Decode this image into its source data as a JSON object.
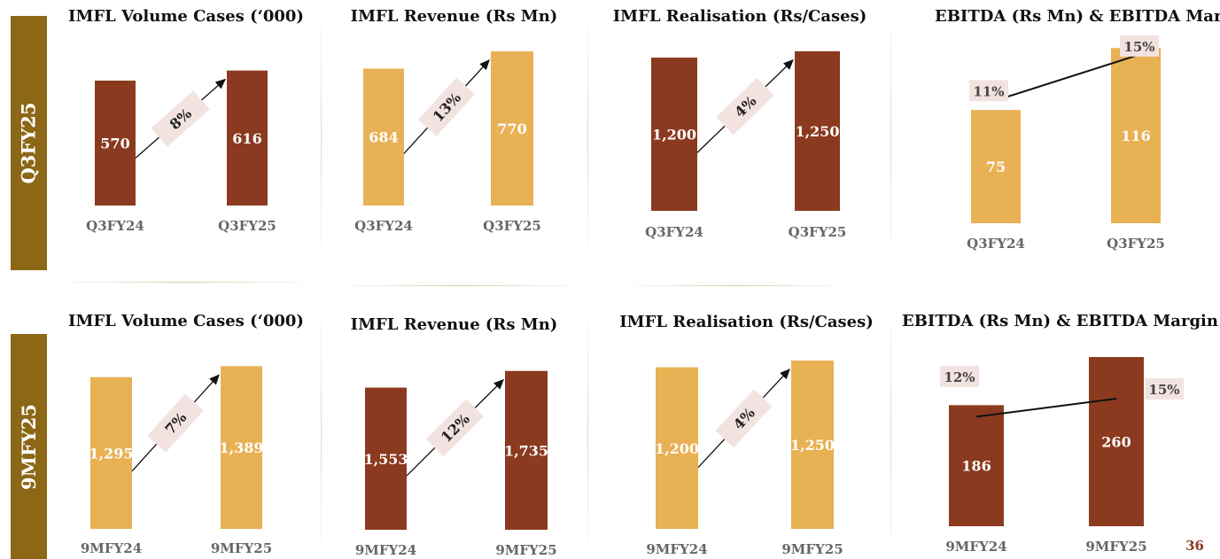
{
  "colors": {
    "brown": "#8B3A1F",
    "gold": "#E8B154",
    "label_bg": "#F3E3E0",
    "side_bar": "#8B6716",
    "tick": "#666666"
  },
  "rows": [
    {
      "label": "Q3FY25"
    },
    {
      "label": "9MFY25"
    }
  ],
  "page_number": "36",
  "chart_data": [
    {
      "type": "bar",
      "title": "IMFL Volume Cases (‘000)",
      "categories": [
        "Q3FY24",
        "Q3FY25"
      ],
      "values": [
        570,
        616
      ],
      "value_labels": [
        "570",
        "616"
      ],
      "growth_label": "8%",
      "bar_color": "brown",
      "ylim": [
        0,
        760
      ]
    },
    {
      "type": "bar",
      "title": "IMFL Revenue (Rs Mn)",
      "categories": [
        "Q3FY24",
        "Q3FY25"
      ],
      "values": [
        684,
        770
      ],
      "value_labels": [
        "684",
        "770"
      ],
      "growth_label": "13%",
      "bar_color": "gold",
      "ylim": [
        0,
        832
      ]
    },
    {
      "type": "bar",
      "title": "IMFL Realisation (Rs/Cases)",
      "categories": [
        "Q3FY24",
        "Q3FY25"
      ],
      "values": [
        1200,
        1250
      ],
      "value_labels": [
        "1,200",
        "1,250"
      ],
      "growth_label": "4%",
      "bar_color": "brown",
      "ylim": [
        0,
        1346
      ]
    },
    {
      "type": "bar",
      "title": "EBITDA (Rs Mn) & EBITDA Margin %",
      "categories": [
        "Q3FY24",
        "Q3FY25"
      ],
      "values": [
        75,
        116
      ],
      "value_labels": [
        "75",
        "116"
      ],
      "margins": [
        11,
        15
      ],
      "margin_labels": [
        "11%",
        "15%"
      ],
      "bar_color": "gold",
      "ylim": [
        0,
        122
      ],
      "margin_ylim": [
        0,
        16.5
      ]
    },
    {
      "type": "bar",
      "title": "IMFL Volume Cases (‘000)",
      "categories": [
        "9MFY24",
        "9MFY25"
      ],
      "values": [
        1295,
        1389
      ],
      "value_labels": [
        "1,295",
        "1,389"
      ],
      "growth_label": "7%",
      "bar_color": "gold",
      "ylim": [
        0,
        1550
      ]
    },
    {
      "type": "bar",
      "title": "IMFL Revenue (Rs Mn)",
      "categories": [
        "9MFY24",
        "9MFY25"
      ],
      "values": [
        1553,
        1735
      ],
      "value_labels": [
        "1,553",
        "1,735"
      ],
      "growth_label": "12%",
      "bar_color": "brown",
      "ylim": [
        0,
        1955
      ]
    },
    {
      "type": "bar",
      "title": "IMFL Realisation (Rs/Cases)",
      "categories": [
        "9MFY24",
        "9MFY25"
      ],
      "values": [
        1200,
        1250
      ],
      "value_labels": [
        "1,200",
        "1,250"
      ],
      "growth_label": "4%",
      "bar_color": "gold",
      "ylim": [
        0,
        1342
      ]
    },
    {
      "type": "bar",
      "title": "EBITDA (Rs Mn) & EBITDA Margin %",
      "categories": [
        "9MFY24",
        "9MFY25"
      ],
      "values": [
        186,
        260
      ],
      "value_labels": [
        "186",
        "260"
      ],
      "margins": [
        12,
        15
      ],
      "margin_labels": [
        "12%",
        "15%"
      ],
      "bar_color": "brown",
      "ylim": [
        0,
        275
      ],
      "margin_ylim": [
        0,
        25
      ]
    }
  ]
}
